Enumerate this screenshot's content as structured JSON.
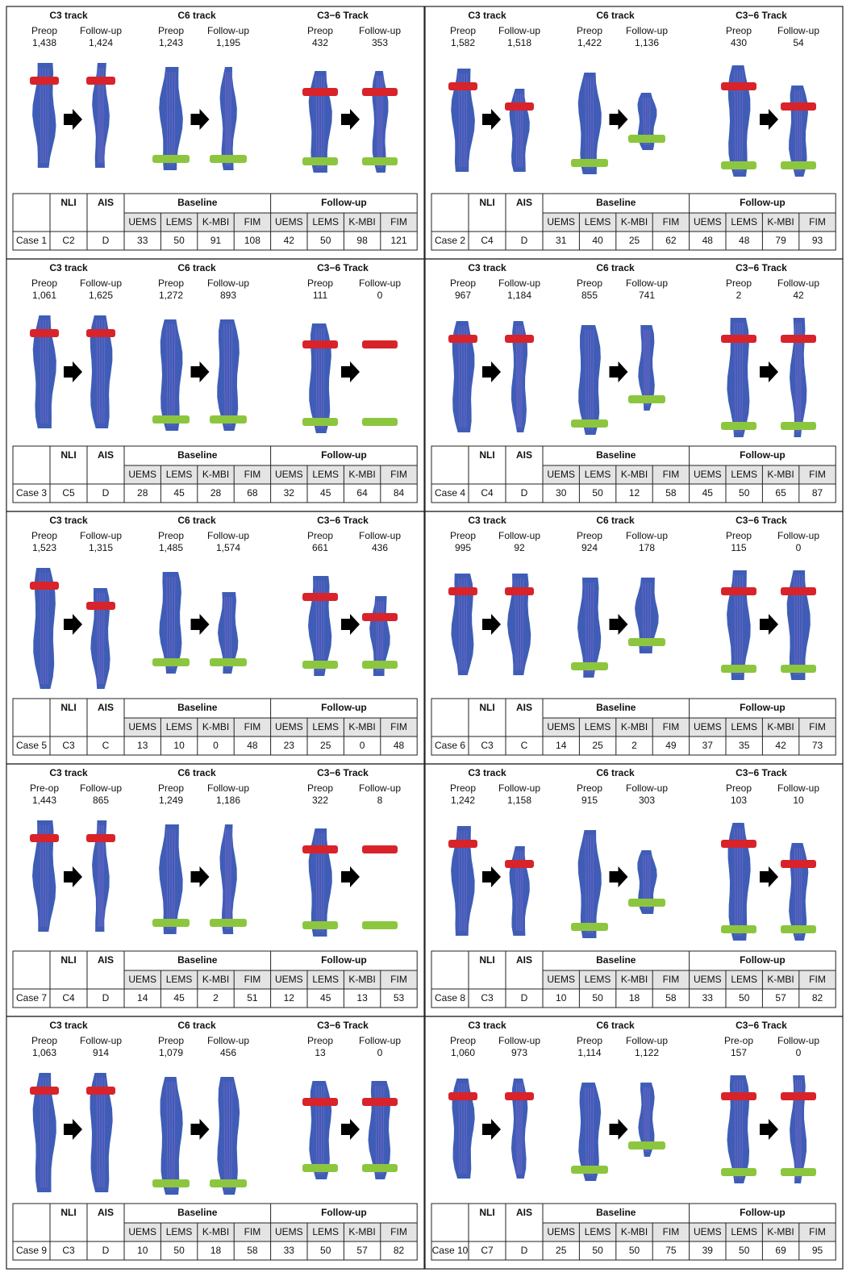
{
  "headers": {
    "nli": "NLI",
    "ais": "AIS",
    "baseline": "Baseline",
    "followup": "Follow-up",
    "measures": [
      "UEMS",
      "LEMS",
      "K-MBI",
      "FIM"
    ]
  },
  "panels": [
    {
      "tracks": [
        {
          "title": "C3 track",
          "pre_label": "Preop",
          "pre": "1,438",
          "post_label": "Follow-up",
          "post": "1,424"
        },
        {
          "title": "C6 track",
          "pre_label": "Preop",
          "pre": "1,243",
          "post_label": "Follow-up",
          "post": "1,195"
        },
        {
          "title": "C3−6 Track",
          "pre_label": "Preop",
          "pre": "432",
          "post_label": "Follow-up",
          "post": "353"
        }
      ],
      "case": "Case 1",
      "nli": "C2",
      "ais": "D",
      "baseline": [
        33,
        50,
        91,
        108
      ],
      "followup": [
        42,
        50,
        98,
        121
      ]
    },
    {
      "tracks": [
        {
          "title": "C3 track",
          "pre_label": "Preop",
          "pre": "1,582",
          "post_label": "Follow-up",
          "post": "1,518"
        },
        {
          "title": "C6 track",
          "pre_label": "Preop",
          "pre": "1,422",
          "post_label": "Follow-up",
          "post": "1,136"
        },
        {
          "title": "C3−6 Track",
          "pre_label": "Preop",
          "pre": "430",
          "post_label": "Follow-up",
          "post": "54"
        }
      ],
      "case": "Case 2",
      "nli": "C4",
      "ais": "D",
      "baseline": [
        31,
        40,
        25,
        62
      ],
      "followup": [
        48,
        48,
        79,
        93
      ]
    },
    {
      "tracks": [
        {
          "title": "C3 track",
          "pre_label": "Preop",
          "pre": "1,061",
          "post_label": "Follow-up",
          "post": "1,625"
        },
        {
          "title": "C6 track",
          "pre_label": "Preop",
          "pre": "1,272",
          "post_label": "Follow-up",
          "post": "893"
        },
        {
          "title": "C3−6 Track",
          "pre_label": "Preop",
          "pre": "111",
          "post_label": "Follow-up",
          "post": "0"
        }
      ],
      "case": "Case 3",
      "nli": "C5",
      "ais": "D",
      "baseline": [
        28,
        45,
        28,
        68
      ],
      "followup": [
        32,
        45,
        64,
        84
      ]
    },
    {
      "tracks": [
        {
          "title": "C3 track",
          "pre_label": "Preop",
          "pre": "967",
          "post_label": "Follow-up",
          "post": "1,184"
        },
        {
          "title": "C6 track",
          "pre_label": "Preop",
          "pre": "855",
          "post_label": "Follow-up",
          "post": "741"
        },
        {
          "title": "C3−6 Track",
          "pre_label": "Preop",
          "pre": "2",
          "post_label": "Follow-up",
          "post": "42"
        }
      ],
      "case": "Case 4",
      "nli": "C4",
      "ais": "D",
      "baseline": [
        30,
        50,
        12,
        58
      ],
      "followup": [
        45,
        50,
        65,
        87
      ]
    },
    {
      "tracks": [
        {
          "title": "C3 track",
          "pre_label": "Preop",
          "pre": "1,523",
          "post_label": "Follow-up",
          "post": "1,315"
        },
        {
          "title": "C6 track",
          "pre_label": "Preop",
          "pre": "1,485",
          "post_label": "Follow-up",
          "post": "1,574"
        },
        {
          "title": "C3−6 Track",
          "pre_label": "Preop",
          "pre": "661",
          "post_label": "Follow-up",
          "post": "436"
        }
      ],
      "case": "Case 5",
      "nli": "C3",
      "ais": "C",
      "baseline": [
        13,
        10,
        0,
        48
      ],
      "followup": [
        23,
        25,
        0,
        48
      ]
    },
    {
      "tracks": [
        {
          "title": "C3 track",
          "pre_label": "Preop",
          "pre": "995",
          "post_label": "Follow-up",
          "post": "92"
        },
        {
          "title": "C6 track",
          "pre_label": "Preop",
          "pre": "924",
          "post_label": "Follow-up",
          "post": "178"
        },
        {
          "title": "C3−6 Track",
          "pre_label": "Preop",
          "pre": "115",
          "post_label": "Follow-up",
          "post": "0"
        }
      ],
      "case": "Case 6",
      "nli": "C3",
      "ais": "C",
      "baseline": [
        14,
        25,
        2,
        49
      ],
      "followup": [
        37,
        35,
        42,
        73
      ]
    },
    {
      "tracks": [
        {
          "title": "C3 track",
          "pre_label": "Pre-op",
          "pre": "1,443",
          "post_label": "Follow-up",
          "post": "865"
        },
        {
          "title": "C6 track",
          "pre_label": "Preop",
          "pre": "1,249",
          "post_label": "Follow-up",
          "post": "1,186"
        },
        {
          "title": "C3−6 Track",
          "pre_label": "Preop",
          "pre": "322",
          "post_label": "Follow-up",
          "post": "8"
        }
      ],
      "case": "Case 7",
      "nli": "C4",
      "ais": "D",
      "baseline": [
        14,
        45,
        2,
        51
      ],
      "followup": [
        12,
        45,
        13,
        53
      ]
    },
    {
      "tracks": [
        {
          "title": "C3 track",
          "pre_label": "Preop",
          "pre": "1,242",
          "post_label": "Follow-up",
          "post": "1,158"
        },
        {
          "title": "C6 track",
          "pre_label": "Preop",
          "pre": "915",
          "post_label": "Follow-up",
          "post": "303"
        },
        {
          "title": "C3−6 Track",
          "pre_label": "Preop",
          "pre": "103",
          "post_label": "Follow-up",
          "post": "10"
        }
      ],
      "case": "Case 8",
      "nli": "C3",
      "ais": "D",
      "baseline": [
        10,
        50,
        18,
        58
      ],
      "followup": [
        33,
        50,
        57,
        82
      ]
    },
    {
      "tracks": [
        {
          "title": "C3 track",
          "pre_label": "Preop",
          "pre": "1,063",
          "post_label": "Follow-up",
          "post": "914"
        },
        {
          "title": "C6 track",
          "pre_label": "Preop",
          "pre": "1,079",
          "post_label": "Follow-up",
          "post": "456"
        },
        {
          "title": "C3−6 Track",
          "pre_label": "Preop",
          "pre": "13",
          "post_label": "Follow-up",
          "post": "0"
        }
      ],
      "case": "Case 9",
      "nli": "C3",
      "ais": "D",
      "baseline": [
        10,
        50,
        18,
        58
      ],
      "followup": [
        33,
        50,
        57,
        82
      ]
    },
    {
      "tracks": [
        {
          "title": "C3 track",
          "pre_label": "Preop",
          "pre": "1,060",
          "post_label": "Follow-up",
          "post": "973"
        },
        {
          "title": "C6 track",
          "pre_label": "Preop",
          "pre": "1,114",
          "post_label": "Follow-up",
          "post": "1,122"
        },
        {
          "title": "C3−6 Track",
          "pre_label": "Pre-op",
          "pre": "157",
          "post_label": "Follow-up",
          "post": "0"
        }
      ],
      "case": "Case 10",
      "nli": "C7",
      "ais": "D",
      "baseline": [
        25,
        50,
        50,
        75
      ],
      "followup": [
        39,
        50,
        69,
        95
      ]
    }
  ]
}
